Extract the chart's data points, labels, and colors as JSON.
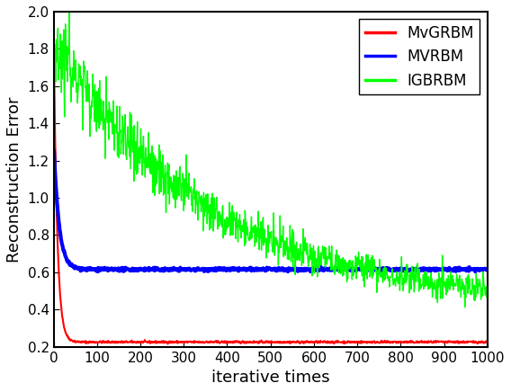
{
  "title": "",
  "xlabel": "iterative times",
  "ylabel": "Reconstruction Error",
  "xlim": [
    0,
    1000
  ],
  "ylim": [
    0.2,
    2.0
  ],
  "yticks": [
    0.2,
    0.4,
    0.6,
    0.8,
    1.0,
    1.2,
    1.4,
    1.6,
    1.8,
    2.0
  ],
  "xticks": [
    0,
    100,
    200,
    300,
    400,
    500,
    600,
    700,
    800,
    900,
    1000
  ],
  "legend_labels": [
    "MvGRBM",
    "MVRBM",
    "IGBRBM"
  ],
  "red_lw": 1.5,
  "blue_lw": 3.0,
  "green_lw": 1.0,
  "red_start": 1.9,
  "red_settle": 0.225,
  "red_decay": 8.0,
  "blue_start": 1.3,
  "blue_settle": 0.615,
  "blue_decay": 12.0,
  "green_start": 1.85,
  "green_end": 0.43,
  "green_decay": 350.0,
  "green_noise_start": 0.08,
  "green_noise_end": 0.03,
  "red_noise": 0.003,
  "blue_noise": 0.004,
  "random_seed": 42,
  "n_points": 1000,
  "background_color": "#ffffff",
  "spine_linewidth": 1.5,
  "tick_fontsize": 11,
  "label_fontsize": 13,
  "legend_fontsize": 12
}
